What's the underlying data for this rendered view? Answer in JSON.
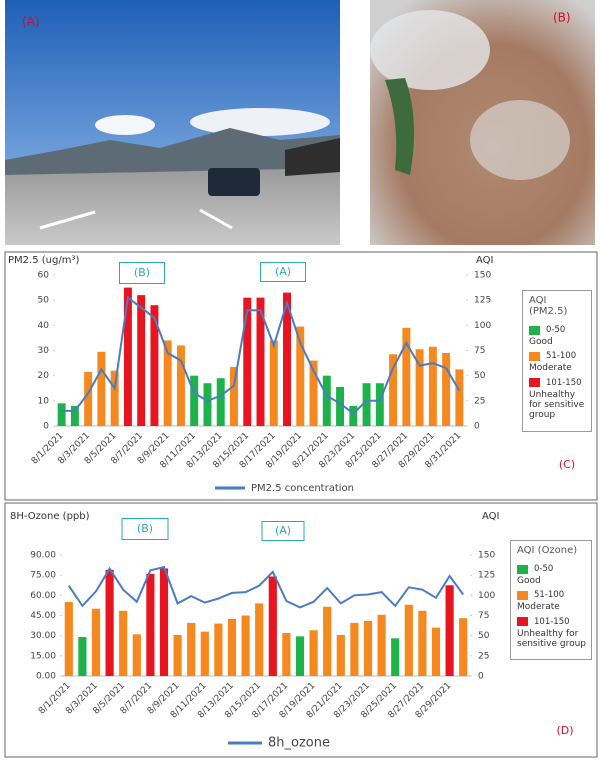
{
  "photos": [
    {
      "label": "(A)"
    },
    {
      "label": "(B)"
    }
  ],
  "chart_data": [
    {
      "type": "bar",
      "y_title": "PM2.5 (ug/m³)",
      "y2_title": "AQI",
      "categories": [
        "8/1/2021",
        null,
        "8/3/2021",
        null,
        "8/5/2021",
        null,
        "8/7/2021",
        null,
        "8/9/2021",
        null,
        "8/11/2021",
        null,
        "8/13/2021",
        null,
        "8/15/2021",
        null,
        "8/17/2021",
        null,
        "8/19/2021",
        null,
        "8/21/2021",
        null,
        "8/23/2021",
        null,
        "8/25/2021",
        null,
        "8/27/2021",
        null,
        "8/29/2021",
        null,
        "8/31/2021"
      ],
      "bars": {
        "values": [
          9,
          8,
          21.5,
          29.5,
          22,
          55,
          52,
          48,
          34,
          32,
          20,
          17,
          19,
          23.5,
          51,
          51,
          34,
          53,
          39.5,
          26,
          20,
          15.5,
          8,
          17,
          17,
          28.5,
          39,
          30.5,
          31.5,
          29,
          22.5
        ],
        "colors": [
          "#1db34a",
          "#1db34a",
          "#f5891f",
          "#f5891f",
          "#f5891f",
          "#e8141f",
          "#e8141f",
          "#e8141f",
          "#f5891f",
          "#f5891f",
          "#1db34a",
          "#1db34a",
          "#1db34a",
          "#f5891f",
          "#e8141f",
          "#e8141f",
          "#f5891f",
          "#e8141f",
          "#f5891f",
          "#f5891f",
          "#1db34a",
          "#1db34a",
          "#1db34a",
          "#1db34a",
          "#1db34a",
          "#f5891f",
          "#f5891f",
          "#f5891f",
          "#f5891f",
          "#f5891f",
          "#f5891f"
        ],
        "axis": "y"
      },
      "line": {
        "name": "PM2.5 concentration",
        "color": "#4a7cc4",
        "axis": "y",
        "values": [
          6,
          6,
          13,
          22.5,
          15,
          51,
          47,
          43,
          29,
          26,
          13,
          10,
          12,
          16,
          46,
          46,
          32,
          49,
          33,
          22,
          12,
          9,
          5,
          10,
          10,
          23,
          33,
          24,
          25,
          23,
          14
        ]
      },
      "ylim": [
        0,
        60
      ],
      "yticks": [
        0,
        10,
        20,
        30,
        40,
        50,
        60
      ],
      "y2lim": [
        0,
        150
      ],
      "y2ticks": [
        0,
        25,
        50,
        75,
        100,
        125,
        150
      ],
      "grid": false,
      "annotations": [
        {
          "text": "(B)",
          "boxed": true
        },
        {
          "text": "(A)",
          "boxed": true
        },
        {
          "text": "(C)",
          "boxed": false
        }
      ],
      "aqi_legend": {
        "title": "AQI (PM2.5)",
        "items": [
          {
            "range": "0-50",
            "label": "Good",
            "color": "#1db34a"
          },
          {
            "range": "51-100",
            "label": "Moderate",
            "color": "#f5891f"
          },
          {
            "range": "101-150",
            "label": "Unhealthy for sensitive group",
            "color": "#e8141f"
          }
        ]
      }
    },
    {
      "type": "bar",
      "y_title": "8H-Ozone (ppb)",
      "y2_title": "AQI",
      "categories": [
        "8/1/2021",
        null,
        "8/3/2021",
        null,
        "8/5/2021",
        null,
        "8/7/2021",
        null,
        "8/9/2021",
        null,
        "8/11/2021",
        null,
        "8/13/2021",
        null,
        "8/15/2021",
        null,
        "8/17/2021",
        null,
        "8/19/2021",
        null,
        "8/21/2021",
        null,
        "8/23/2021",
        null,
        "8/25/2021",
        null,
        "8/27/2021",
        null,
        "8/29/2021",
        null
      ],
      "bars": {
        "values": [
          55,
          29,
          50,
          79,
          48.5,
          31,
          76,
          80,
          30.5,
          39.5,
          33,
          39,
          42.5,
          45,
          54,
          74,
          32,
          29.5,
          34,
          51.5,
          30.5,
          39.5,
          41,
          45.5,
          28,
          53,
          48.5,
          36,
          67.5,
          43
        ],
        "colors": [
          "#f5891f",
          "#1db34a",
          "#f5891f",
          "#e8141f",
          "#f5891f",
          "#f5891f",
          "#e8141f",
          "#e8141f",
          "#f5891f",
          "#f5891f",
          "#f5891f",
          "#f5891f",
          "#f5891f",
          "#f5891f",
          "#f5891f",
          "#e8141f",
          "#f5891f",
          "#1db34a",
          "#f5891f",
          "#f5891f",
          "#f5891f",
          "#f5891f",
          "#f5891f",
          "#f5891f",
          "#1db34a",
          "#f5891f",
          "#f5891f",
          "#f5891f",
          "#e8141f",
          "#f5891f"
        ],
        "axis": "y"
      },
      "line": {
        "name": "8h_ozone",
        "color": "#4a7cc4",
        "axis": "y2",
        "values": [
          112,
          87,
          105,
          133,
          107,
          92,
          131,
          135,
          90,
          99,
          91,
          96,
          103,
          104,
          112,
          129,
          93,
          85,
          92,
          109,
          90,
          100,
          101,
          104,
          87,
          110,
          107,
          97,
          124,
          101
        ]
      },
      "ylim": [
        0,
        90
      ],
      "yticks": [
        {
          "value": 0,
          "label": "0.00"
        },
        {
          "value": 15,
          "label": "15.00"
        },
        {
          "value": 30,
          "label": "30.00"
        },
        {
          "value": 45,
          "label": "45.00"
        },
        {
          "value": 60,
          "label": "60.00"
        },
        {
          "value": 75,
          "label": "75.00"
        },
        {
          "value": 90,
          "label": "90.00"
        }
      ],
      "y2lim": [
        0,
        150
      ],
      "y2ticks": [
        0,
        25,
        50,
        75,
        100,
        125,
        150
      ],
      "grid": false,
      "annotations": [
        {
          "text": "(B)",
          "boxed": true
        },
        {
          "text": "(A)",
          "boxed": true
        },
        {
          "text": "(D)",
          "boxed": false
        }
      ],
      "aqi_legend": {
        "title": "AQI (Ozone)",
        "items": [
          {
            "range": "0-50",
            "label": "Good",
            "color": "#1db34a"
          },
          {
            "range": "51-100",
            "label": "Moderate",
            "color": "#f5891f"
          },
          {
            "range": "101-150",
            "label": "Unhealthy for sensitive group",
            "color": "#e8141f"
          }
        ]
      }
    }
  ]
}
